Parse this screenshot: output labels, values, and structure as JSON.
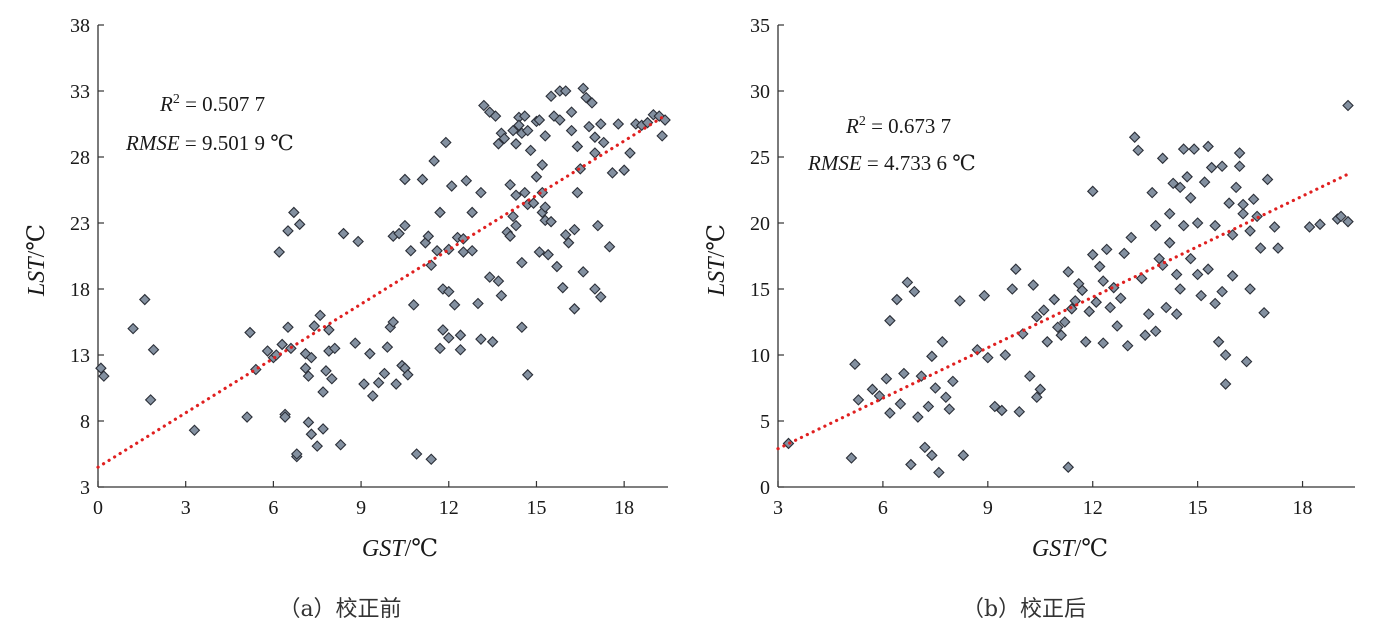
{
  "chart_data": [
    {
      "type": "scatter",
      "panel": "a",
      "caption": "（a）校正前",
      "xlabel_main": "GST",
      "xlabel_unit": "/℃",
      "ylabel_main": "LST",
      "ylabel_unit": "/℃",
      "xlim": [
        0,
        19.5
      ],
      "ylim": [
        3,
        38
      ],
      "xticks": [
        0,
        3,
        6,
        9,
        12,
        15,
        18
      ],
      "yticks": [
        3,
        8,
        13,
        18,
        23,
        28,
        33,
        38
      ],
      "annotations": {
        "r2_label": "R",
        "r2_sup": "2",
        "r2_value": " = 0.507 7",
        "rmse_label": "RMSE",
        "rmse_value": " = 9.501 9 ℃"
      },
      "colors": {
        "marker_fill": "#8390a0",
        "marker_edge": "#2b2f38",
        "trend": "#e02020"
      },
      "trendline": {
        "x": [
          0,
          19.3
        ],
        "y": [
          4.5,
          31.0
        ]
      },
      "points": [
        [
          0.1,
          12.0
        ],
        [
          0.2,
          11.4
        ],
        [
          1.2,
          15.0
        ],
        [
          1.6,
          17.2
        ],
        [
          1.8,
          9.6
        ],
        [
          1.9,
          13.4
        ],
        [
          3.3,
          7.3
        ],
        [
          5.1,
          8.3
        ],
        [
          5.2,
          14.7
        ],
        [
          5.4,
          11.9
        ],
        [
          5.8,
          13.3
        ],
        [
          6.0,
          12.8
        ],
        [
          6.1,
          13.0
        ],
        [
          6.2,
          20.8
        ],
        [
          6.3,
          13.8
        ],
        [
          6.4,
          8.5
        ],
        [
          6.4,
          8.3
        ],
        [
          6.5,
          22.4
        ],
        [
          6.5,
          15.1
        ],
        [
          6.6,
          13.5
        ],
        [
          6.7,
          23.8
        ],
        [
          6.8,
          5.3
        ],
        [
          6.8,
          5.5
        ],
        [
          6.9,
          22.9
        ],
        [
          7.1,
          12.0
        ],
        [
          7.1,
          13.1
        ],
        [
          7.2,
          7.9
        ],
        [
          7.2,
          11.4
        ],
        [
          7.3,
          12.8
        ],
        [
          7.3,
          7.0
        ],
        [
          7.4,
          15.2
        ],
        [
          7.5,
          6.1
        ],
        [
          7.6,
          16.0
        ],
        [
          7.7,
          10.2
        ],
        [
          7.7,
          7.4
        ],
        [
          7.8,
          11.8
        ],
        [
          7.9,
          13.3
        ],
        [
          7.9,
          14.9
        ],
        [
          8.0,
          11.2
        ],
        [
          8.1,
          13.5
        ],
        [
          8.3,
          6.2
        ],
        [
          8.4,
          22.2
        ],
        [
          8.8,
          13.9
        ],
        [
          8.9,
          21.6
        ],
        [
          9.1,
          10.8
        ],
        [
          9.3,
          13.1
        ],
        [
          9.4,
          9.9
        ],
        [
          9.6,
          10.9
        ],
        [
          9.8,
          11.6
        ],
        [
          9.9,
          13.6
        ],
        [
          10.0,
          15.1
        ],
        [
          10.1,
          15.5
        ],
        [
          10.1,
          22.0
        ],
        [
          10.2,
          10.8
        ],
        [
          10.3,
          22.2
        ],
        [
          10.4,
          12.2
        ],
        [
          10.5,
          12.0
        ],
        [
          10.5,
          26.3
        ],
        [
          10.5,
          22.8
        ],
        [
          10.6,
          11.5
        ],
        [
          10.7,
          20.9
        ],
        [
          10.8,
          16.8
        ],
        [
          10.9,
          5.5
        ],
        [
          11.1,
          26.3
        ],
        [
          11.2,
          21.5
        ],
        [
          11.3,
          22.0
        ],
        [
          11.4,
          19.8
        ],
        [
          11.4,
          5.1
        ],
        [
          11.5,
          27.7
        ],
        [
          11.6,
          20.9
        ],
        [
          11.7,
          13.5
        ],
        [
          11.7,
          23.8
        ],
        [
          11.8,
          18.0
        ],
        [
          11.8,
          14.9
        ],
        [
          11.9,
          29.1
        ],
        [
          12.0,
          17.8
        ],
        [
          12.0,
          14.3
        ],
        [
          12.0,
          21.0
        ],
        [
          12.1,
          25.8
        ],
        [
          12.2,
          16.8
        ],
        [
          12.3,
          21.9
        ],
        [
          12.4,
          13.4
        ],
        [
          12.4,
          14.5
        ],
        [
          12.5,
          21.8
        ],
        [
          12.5,
          20.8
        ],
        [
          12.6,
          26.2
        ],
        [
          12.8,
          20.9
        ],
        [
          12.8,
          23.8
        ],
        [
          13.0,
          16.9
        ],
        [
          13.1,
          14.2
        ],
        [
          13.1,
          25.3
        ],
        [
          13.2,
          31.9
        ],
        [
          13.4,
          31.4
        ],
        [
          13.4,
          18.9
        ],
        [
          13.5,
          14.0
        ],
        [
          13.6,
          31.1
        ],
        [
          13.7,
          29.0
        ],
        [
          13.7,
          18.6
        ],
        [
          13.8,
          17.5
        ],
        [
          13.8,
          29.8
        ],
        [
          13.9,
          29.4
        ],
        [
          14.0,
          22.3
        ],
        [
          14.1,
          25.9
        ],
        [
          14.1,
          22.0
        ],
        [
          14.2,
          30.0
        ],
        [
          14.2,
          23.5
        ],
        [
          14.3,
          22.8
        ],
        [
          14.3,
          29.0
        ],
        [
          14.3,
          25.1
        ],
        [
          14.4,
          31.0
        ],
        [
          14.4,
          30.4
        ],
        [
          14.5,
          15.1
        ],
        [
          14.5,
          20.0
        ],
        [
          14.5,
          29.8
        ],
        [
          14.6,
          31.1
        ],
        [
          14.6,
          25.3
        ],
        [
          14.7,
          11.5
        ],
        [
          14.7,
          24.4
        ],
        [
          14.7,
          30.0
        ],
        [
          14.8,
          28.5
        ],
        [
          14.9,
          24.5
        ],
        [
          15.0,
          26.5
        ],
        [
          15.0,
          30.7
        ],
        [
          15.1,
          20.8
        ],
        [
          15.1,
          30.8
        ],
        [
          15.2,
          25.3
        ],
        [
          15.2,
          23.8
        ],
        [
          15.2,
          27.4
        ],
        [
          15.3,
          24.2
        ],
        [
          15.3,
          23.2
        ],
        [
          15.3,
          29.6
        ],
        [
          15.4,
          20.6
        ],
        [
          15.5,
          32.6
        ],
        [
          15.5,
          23.1
        ],
        [
          15.6,
          31.1
        ],
        [
          15.7,
          19.7
        ],
        [
          15.8,
          33.0
        ],
        [
          15.8,
          30.8
        ],
        [
          15.9,
          18.1
        ],
        [
          16.0,
          22.1
        ],
        [
          16.0,
          33.0
        ],
        [
          16.1,
          21.5
        ],
        [
          16.2,
          30.0
        ],
        [
          16.2,
          31.4
        ],
        [
          16.3,
          22.5
        ],
        [
          16.3,
          16.5
        ],
        [
          16.4,
          25.3
        ],
        [
          16.4,
          28.8
        ],
        [
          16.5,
          27.1
        ],
        [
          16.6,
          33.2
        ],
        [
          16.6,
          19.3
        ],
        [
          16.7,
          32.5
        ],
        [
          16.8,
          30.3
        ],
        [
          16.9,
          32.1
        ],
        [
          17.0,
          29.5
        ],
        [
          17.0,
          18.0
        ],
        [
          17.0,
          28.3
        ],
        [
          17.1,
          22.8
        ],
        [
          17.2,
          30.5
        ],
        [
          17.2,
          17.4
        ],
        [
          17.3,
          29.1
        ],
        [
          17.5,
          21.2
        ],
        [
          17.6,
          26.8
        ],
        [
          17.8,
          30.5
        ],
        [
          18.0,
          27.0
        ],
        [
          18.2,
          28.3
        ],
        [
          18.4,
          30.5
        ],
        [
          18.6,
          30.4
        ],
        [
          18.8,
          30.6
        ],
        [
          19.0,
          31.2
        ],
        [
          19.2,
          31.1
        ],
        [
          19.3,
          29.6
        ],
        [
          19.4,
          30.8
        ]
      ]
    },
    {
      "type": "scatter",
      "panel": "b",
      "caption": "（b）校正后",
      "xlabel_main": "GST",
      "xlabel_unit": "/℃",
      "ylabel_main": "LST",
      "ylabel_unit": "/℃",
      "xlim": [
        3,
        19.5
      ],
      "ylim": [
        0,
        35
      ],
      "xticks": [
        3,
        6,
        9,
        12,
        15,
        18
      ],
      "yticks": [
        0,
        5,
        10,
        15,
        20,
        25,
        30,
        35
      ],
      "annotations": {
        "r2_label": "R",
        "r2_sup": "2",
        "r2_value": " = 0.673 7",
        "rmse_label": "RMSE",
        "rmse_value": " = 4.733 6 ℃"
      },
      "colors": {
        "marker_fill": "#8390a0",
        "marker_edge": "#2b2f38",
        "trend": "#e02020"
      },
      "trendline": {
        "x": [
          3.0,
          19.3
        ],
        "y": [
          2.9,
          23.7
        ]
      },
      "points": [
        [
          3.3,
          3.3
        ],
        [
          5.1,
          2.2
        ],
        [
          5.2,
          9.3
        ],
        [
          5.3,
          6.6
        ],
        [
          5.7,
          7.4
        ],
        [
          5.9,
          6.9
        ],
        [
          6.1,
          8.2
        ],
        [
          6.2,
          12.6
        ],
        [
          6.2,
          5.6
        ],
        [
          6.4,
          14.2
        ],
        [
          6.5,
          6.3
        ],
        [
          6.6,
          8.6
        ],
        [
          6.7,
          15.5
        ],
        [
          6.8,
          1.7
        ],
        [
          6.9,
          14.8
        ],
        [
          7.0,
          5.3
        ],
        [
          7.1,
          8.4
        ],
        [
          7.2,
          3.0
        ],
        [
          7.3,
          6.1
        ],
        [
          7.4,
          2.4
        ],
        [
          7.4,
          9.9
        ],
        [
          7.5,
          7.5
        ],
        [
          7.6,
          1.1
        ],
        [
          7.7,
          11.0
        ],
        [
          7.8,
          6.8
        ],
        [
          7.9,
          5.9
        ],
        [
          8.0,
          8.0
        ],
        [
          8.2,
          14.1
        ],
        [
          8.3,
          2.4
        ],
        [
          8.7,
          10.4
        ],
        [
          8.9,
          14.5
        ],
        [
          9.0,
          9.8
        ],
        [
          9.2,
          6.1
        ],
        [
          9.4,
          5.8
        ],
        [
          9.5,
          10.0
        ],
        [
          9.7,
          15.0
        ],
        [
          9.8,
          16.5
        ],
        [
          9.9,
          5.7
        ],
        [
          10.0,
          11.6
        ],
        [
          10.2,
          8.4
        ],
        [
          10.3,
          15.3
        ],
        [
          10.4,
          12.9
        ],
        [
          10.4,
          6.8
        ],
        [
          10.5,
          7.4
        ],
        [
          10.6,
          13.4
        ],
        [
          10.7,
          11.0
        ],
        [
          10.9,
          14.2
        ],
        [
          11.0,
          12.1
        ],
        [
          11.1,
          11.5
        ],
        [
          11.2,
          12.5
        ],
        [
          11.3,
          16.3
        ],
        [
          11.3,
          1.5
        ],
        [
          11.4,
          13.5
        ],
        [
          11.5,
          14.1
        ],
        [
          11.6,
          15.4
        ],
        [
          11.7,
          14.9
        ],
        [
          11.8,
          11.0
        ],
        [
          11.9,
          13.3
        ],
        [
          12.0,
          17.6
        ],
        [
          12.0,
          22.4
        ],
        [
          12.1,
          14.0
        ],
        [
          12.2,
          16.7
        ],
        [
          12.3,
          10.9
        ],
        [
          12.3,
          15.6
        ],
        [
          12.4,
          18.0
        ],
        [
          12.5,
          13.6
        ],
        [
          12.6,
          15.1
        ],
        [
          12.7,
          12.2
        ],
        [
          12.8,
          14.3
        ],
        [
          12.9,
          17.7
        ],
        [
          13.0,
          10.7
        ],
        [
          13.1,
          18.9
        ],
        [
          13.2,
          26.5
        ],
        [
          13.3,
          25.5
        ],
        [
          13.4,
          15.8
        ],
        [
          13.5,
          11.5
        ],
        [
          13.6,
          13.1
        ],
        [
          13.7,
          22.3
        ],
        [
          13.8,
          19.8
        ],
        [
          13.8,
          11.8
        ],
        [
          13.9,
          17.3
        ],
        [
          14.0,
          24.9
        ],
        [
          14.0,
          16.8
        ],
        [
          14.1,
          13.6
        ],
        [
          14.2,
          20.7
        ],
        [
          14.2,
          18.5
        ],
        [
          14.3,
          23.0
        ],
        [
          14.4,
          16.1
        ],
        [
          14.4,
          13.1
        ],
        [
          14.5,
          22.7
        ],
        [
          14.5,
          15.0
        ],
        [
          14.6,
          25.6
        ],
        [
          14.6,
          19.8
        ],
        [
          14.7,
          23.5
        ],
        [
          14.8,
          17.3
        ],
        [
          14.8,
          21.9
        ],
        [
          14.9,
          25.6
        ],
        [
          15.0,
          20.0
        ],
        [
          15.0,
          16.1
        ],
        [
          15.1,
          14.5
        ],
        [
          15.2,
          23.1
        ],
        [
          15.3,
          25.8
        ],
        [
          15.3,
          16.5
        ],
        [
          15.4,
          24.2
        ],
        [
          15.5,
          19.8
        ],
        [
          15.5,
          13.9
        ],
        [
          15.6,
          11.0
        ],
        [
          15.7,
          24.3
        ],
        [
          15.7,
          14.8
        ],
        [
          15.8,
          10.0
        ],
        [
          15.8,
          7.8
        ],
        [
          15.9,
          21.5
        ],
        [
          16.0,
          19.1
        ],
        [
          16.0,
          16.0
        ],
        [
          16.1,
          22.7
        ],
        [
          16.2,
          25.3
        ],
        [
          16.2,
          24.3
        ],
        [
          16.3,
          20.7
        ],
        [
          16.3,
          21.4
        ],
        [
          16.4,
          9.5
        ],
        [
          16.5,
          15.0
        ],
        [
          16.5,
          19.4
        ],
        [
          16.6,
          21.8
        ],
        [
          16.7,
          20.5
        ],
        [
          16.8,
          18.1
        ],
        [
          16.9,
          13.2
        ],
        [
          17.0,
          23.3
        ],
        [
          17.2,
          19.7
        ],
        [
          17.3,
          18.1
        ],
        [
          18.2,
          19.7
        ],
        [
          18.5,
          19.9
        ],
        [
          19.0,
          20.3
        ],
        [
          19.1,
          20.5
        ],
        [
          19.3,
          20.1
        ],
        [
          19.3,
          28.9
        ]
      ]
    }
  ]
}
